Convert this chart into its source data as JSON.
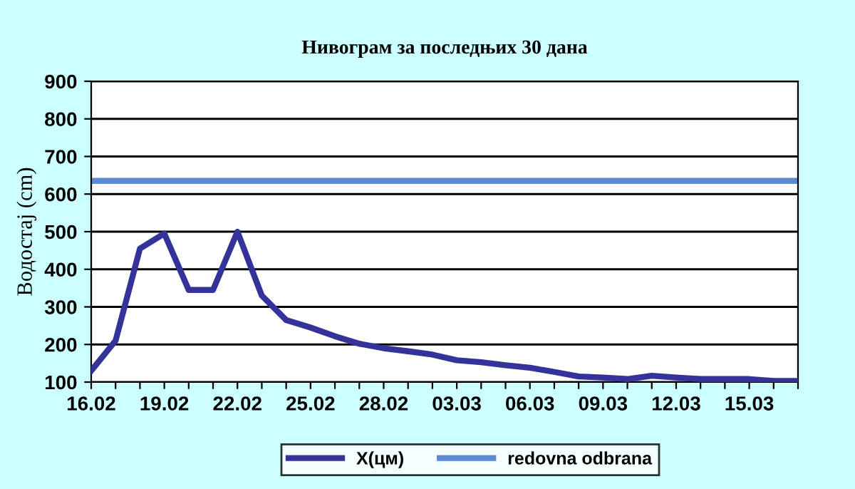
{
  "chart_data": {
    "type": "line",
    "title": "Нивограм за последњих 30 дана",
    "ylabel": "Водостај (cm)",
    "categories": [
      "16.02",
      null,
      null,
      "19.02",
      null,
      null,
      "22.02",
      null,
      null,
      "25.02",
      null,
      null,
      "28.02",
      null,
      null,
      "03.03",
      null,
      null,
      "06.03",
      null,
      null,
      "09.03",
      null,
      null,
      "12.03",
      null,
      null,
      "15.03",
      null,
      null
    ],
    "series": [
      {
        "name": "X(цм)",
        "color": "#333399",
        "values": [
          130,
          210,
          455,
          495,
          345,
          345,
          500,
          330,
          265,
          245,
          222,
          202,
          190,
          182,
          173,
          158,
          153,
          145,
          138,
          127,
          115,
          112,
          108,
          117,
          112,
          108,
          108,
          108,
          103,
          103
        ]
      }
    ],
    "ref_lines": [
      {
        "axis": "y",
        "value": 635,
        "label": "redovna odbrana",
        "color": "#5b8bd6"
      }
    ],
    "ylim": [
      100,
      900
    ],
    "yticks": [
      100,
      200,
      300,
      400,
      500,
      600,
      700,
      800,
      900
    ],
    "grid": "y",
    "legend": "bottom",
    "marker": "none",
    "line_style": "solid"
  }
}
